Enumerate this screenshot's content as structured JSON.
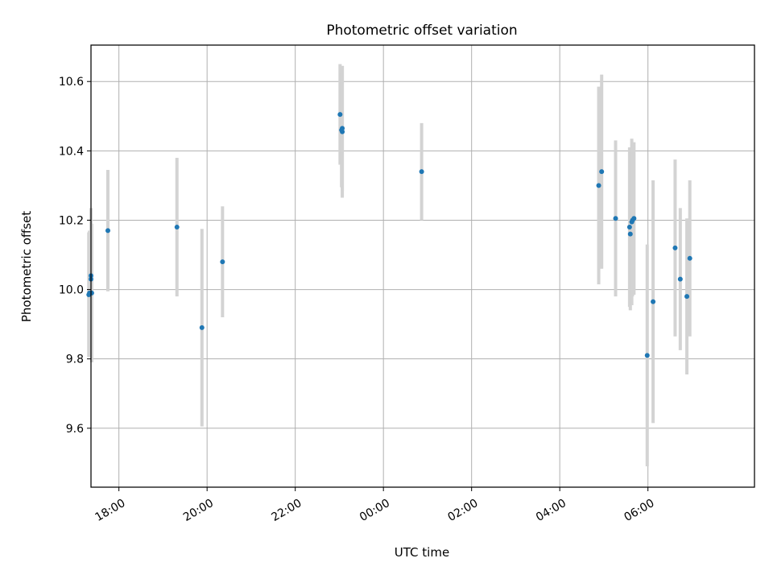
{
  "chart_data": {
    "type": "scatter",
    "title": "Photometric offset variation",
    "xlabel": "UTC time",
    "ylabel": "Photometric offset",
    "x_is_time": true,
    "xlim": [
      "17:22",
      "08:25"
    ],
    "ylim": [
      9.43,
      10.705
    ],
    "x_ticks": [
      {
        "value": "18:00",
        "label": "18:00"
      },
      {
        "value": "20:00",
        "label": "20:00"
      },
      {
        "value": "22:00",
        "label": "22:00"
      },
      {
        "value": "00:00",
        "label": "00:00"
      },
      {
        "value": "02:00",
        "label": "02:00"
      },
      {
        "value": "04:00",
        "label": "04:00"
      },
      {
        "value": "06:00",
        "label": "06:00"
      }
    ],
    "y_ticks": [
      9.6,
      9.8,
      10.0,
      10.2,
      10.4,
      10.6
    ],
    "grid": true,
    "marker_color": "#1f77b4",
    "errorbar_color": "#d3d3d3",
    "series": [
      {
        "points": [
          {
            "x": "17:19",
            "y": 9.985,
            "yerr": 0.18
          },
          {
            "x": "17:20",
            "y": 9.99,
            "yerr": 0.18
          },
          {
            "x": "17:22",
            "y": 10.04,
            "yerr": 0.195
          },
          {
            "x": "17:22",
            "y": 10.03,
            "yerr": 0.195
          },
          {
            "x": "17:23",
            "y": 9.99,
            "yerr": 0.2
          },
          {
            "x": "17:45",
            "y": 10.17,
            "yerr": 0.175
          },
          {
            "x": "19:19",
            "y": 10.18,
            "yerr": 0.2
          },
          {
            "x": "19:53",
            "y": 9.89,
            "yerr": 0.285
          },
          {
            "x": "20:21",
            "y": 10.08,
            "yerr": 0.16
          },
          {
            "x": "23:01",
            "y": 10.505,
            "yerr": 0.145
          },
          {
            "x": "23:03",
            "y": 10.46,
            "yerr": 0.165
          },
          {
            "x": "23:04",
            "y": 10.455,
            "yerr": 0.19
          },
          {
            "x": "23:04",
            "y": 10.465,
            "yerr": 0.18
          },
          {
            "x": "00:52",
            "y": 10.34,
            "yerr": 0.14
          },
          {
            "x": "04:53",
            "y": 10.3,
            "yerr": 0.285
          },
          {
            "x": "04:57",
            "y": 10.34,
            "yerr": 0.28
          },
          {
            "x": "05:16",
            "y": 10.205,
            "yerr": 0.225
          },
          {
            "x": "05:35",
            "y": 10.18,
            "yerr": 0.23
          },
          {
            "x": "05:36",
            "y": 10.16,
            "yerr": 0.22
          },
          {
            "x": "05:38",
            "y": 10.195,
            "yerr": 0.24
          },
          {
            "x": "05:39",
            "y": 10.2,
            "yerr": 0.22
          },
          {
            "x": "05:41",
            "y": 10.205,
            "yerr": 0.22
          },
          {
            "x": "05:59",
            "y": 9.81,
            "yerr": 0.32
          },
          {
            "x": "06:07",
            "y": 9.965,
            "yerr": 0.35
          },
          {
            "x": "06:37",
            "y": 10.12,
            "yerr": 0.255
          },
          {
            "x": "06:44",
            "y": 10.03,
            "yerr": 0.205
          },
          {
            "x": "06:53",
            "y": 9.98,
            "yerr": 0.225
          },
          {
            "x": "06:57",
            "y": 10.09,
            "yerr": 0.225
          }
        ]
      }
    ]
  }
}
